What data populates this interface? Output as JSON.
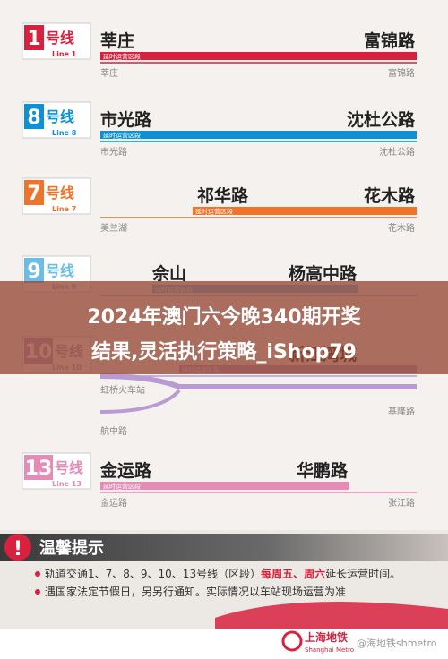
{
  "lines": [
    {
      "number": "1",
      "suffix": "号线",
      "english": "Line 1",
      "color": "#d9213f",
      "top_stations": [
        "莘庄",
        "富锦路"
      ],
      "section_label": "延时运营区段",
      "bottom_stations": [
        "莘庄",
        "富锦路"
      ]
    },
    {
      "number": "8",
      "suffix": "号线",
      "english": "Line 8",
      "color": "#0f8fd4",
      "top_stations": [
        "市光路",
        "沈杜公路"
      ],
      "section_label": "延时运营区段",
      "bottom_stations": [
        "市光路",
        "沈杜公路"
      ]
    },
    {
      "number": "7",
      "suffix": "号线",
      "english": "Line 7",
      "color": "#f0732a",
      "top_stations": [
        "祁华路",
        "花木路"
      ],
      "section_label": "延时运营区段",
      "bottom_stations": [
        "美兰湖",
        "花木路"
      ]
    },
    {
      "number": "9",
      "suffix": "号线",
      "english": "Line 9",
      "color": "#6cbde6",
      "top_stations": [
        "佘山",
        "杨高中路"
      ],
      "section_label": "延时运营区段",
      "bottom_stations": []
    },
    {
      "number": "10",
      "suffix": "号线",
      "english": "Line 10",
      "color": "#b99bd3",
      "top_stations": [
        "新江湾城"
      ],
      "section_label": "延时运营区段",
      "bottom_stations": [
        "虹桥火车站",
        "航中路",
        "基隆路"
      ]
    },
    {
      "number": "13",
      "suffix": "号线",
      "english": "Line 13",
      "color": "#e58bb5",
      "top_stations": [
        "金运路",
        "华鹏路"
      ],
      "section_label": "延时运营区段",
      "bottom_stations": [
        "金运路",
        "张江路"
      ]
    }
  ],
  "overlay": {
    "line1": "2024年澳门六今晚340期开奖",
    "line2": "结果,灵活执行策略_iShop79"
  },
  "notice": {
    "title": "温馨提示",
    "items": [
      [
        "轨道交通1、7、8、9、10、13号线（区段）",
        "每周五、周六",
        "延长运营时间。"
      ],
      [
        "遇国家法定节假日，另另行通知。实际情况以车站现场运营为准"
      ]
    ]
  },
  "footer": {
    "brand": "上海地铁",
    "brand_en": "Shanghai Metro",
    "watermark": "@海地铁shmetro"
  }
}
